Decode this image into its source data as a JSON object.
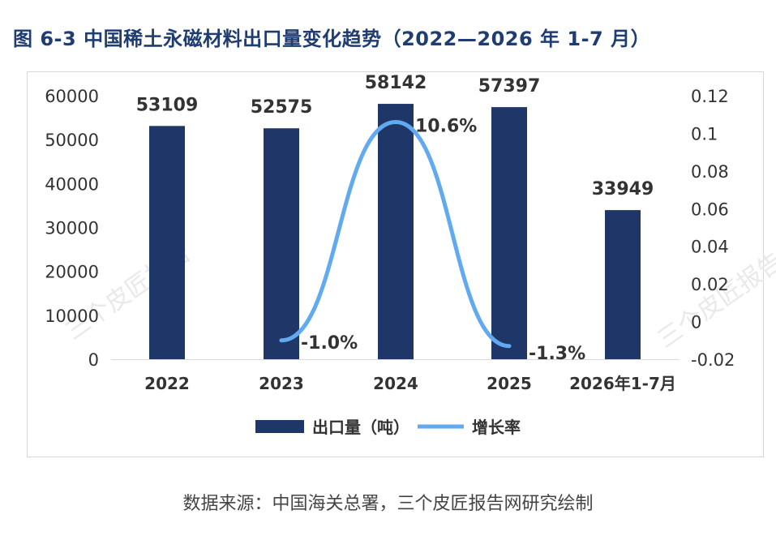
{
  "title": "图 6-3  中国稀土永磁材料出口量变化趋势（2022—2026 年 1-7 月）",
  "source": "数据来源：中国海关总署，三个皮匠报告网研究绘制",
  "watermark": "三个皮匠报告",
  "colors": {
    "title": "#1f3c73",
    "bar": "#1f3768",
    "line": "#62aaf0",
    "text": "#333333"
  },
  "chart_data": {
    "type": "bar",
    "categories": [
      "2022",
      "2023",
      "2024",
      "2025",
      "2026年1-7月"
    ],
    "series": [
      {
        "name": "出口量（吨）",
        "type": "bar",
        "axis": "left",
        "values": [
          53109,
          52575,
          58142,
          57397,
          33949
        ],
        "labels": [
          "53109",
          "52575",
          "58142",
          "57397",
          "33949"
        ]
      },
      {
        "name": "增长率",
        "type": "line",
        "axis": "right",
        "smooth": true,
        "values": [
          null,
          -0.01,
          0.106,
          -0.013,
          null
        ],
        "labels": [
          "",
          "-1.0%",
          "10.6%",
          "-1.3%",
          ""
        ]
      }
    ],
    "y_left": {
      "ylim": [
        0,
        60000
      ],
      "ticks": [
        "0",
        "10000",
        "20000",
        "30000",
        "40000",
        "50000",
        "60000"
      ]
    },
    "y_right": {
      "ylim": [
        -0.02,
        0.12
      ],
      "ticks": [
        "-0.02",
        "0",
        "0.02",
        "0.04",
        "0.06",
        "0.08",
        "0.1",
        "0.12"
      ]
    },
    "legend": "bottom",
    "grid": false
  }
}
